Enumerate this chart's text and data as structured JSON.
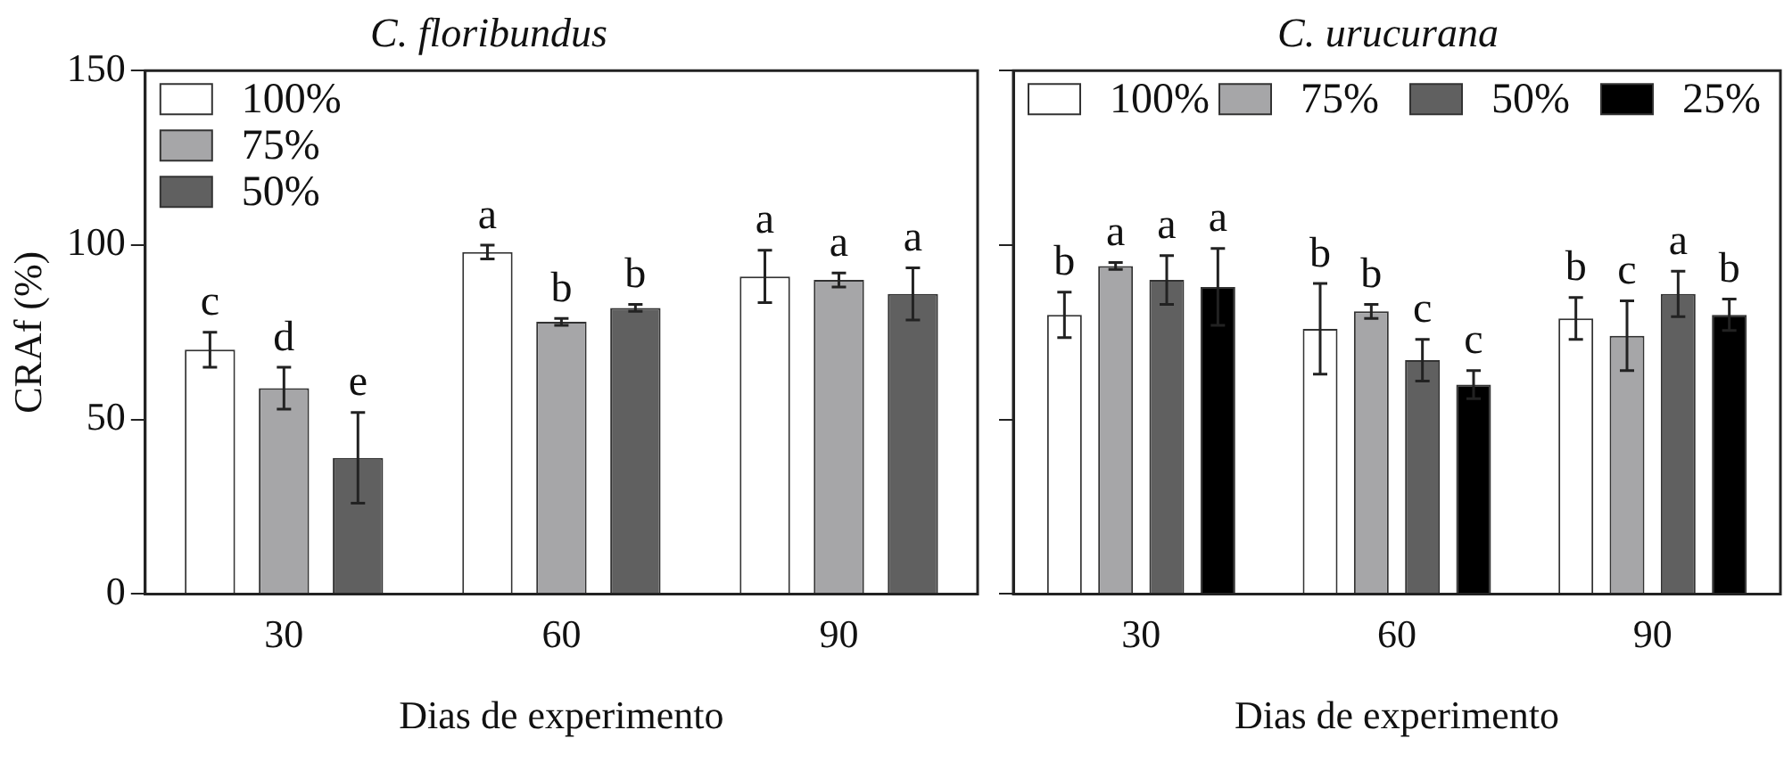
{
  "chart_data": [
    {
      "type": "bar",
      "title": "C. floribundus",
      "xlabel": "Dias de experimento",
      "ylabel": "CRAf (%)",
      "categories": [
        "30",
        "60",
        "90"
      ],
      "ylim": [
        0,
        150
      ],
      "yticks": [
        0,
        50,
        100,
        150
      ],
      "grid": false,
      "legend": "top left",
      "series": [
        {
          "name": "100%",
          "color": "#ffffff",
          "values": [
            70,
            98,
            91
          ],
          "errors": [
            5,
            2,
            7.5
          ],
          "value_labels": [
            "c",
            "a",
            "a"
          ]
        },
        {
          "name": "75%",
          "color": "#a6a6a8",
          "values": [
            59,
            78,
            90
          ],
          "errors": [
            6,
            1,
            2
          ],
          "value_labels": [
            "d",
            "b",
            "a"
          ]
        },
        {
          "name": "50%",
          "color": "#606060",
          "values": [
            39,
            82,
            86
          ],
          "errors": [
            13,
            1,
            7.5
          ],
          "value_labels": [
            "e",
            "b",
            "a"
          ]
        }
      ]
    },
    {
      "type": "bar",
      "title": "C. urucurana",
      "xlabel": "Dias de experimento",
      "categories": [
        "30",
        "60",
        "90"
      ],
      "ylim": [
        0,
        150
      ],
      "yticks": [
        0,
        50,
        100,
        150
      ],
      "grid": false,
      "legend": "top",
      "tick_labels": "x",
      "series": [
        {
          "name": "100%",
          "color": "#ffffff",
          "values": [
            80,
            76,
            79
          ],
          "errors": [
            6.5,
            13,
            6
          ],
          "value_labels": [
            "b",
            "b",
            "b"
          ]
        },
        {
          "name": "75%",
          "color": "#a6a6a8",
          "values": [
            94,
            81,
            74
          ],
          "errors": [
            1,
            2,
            10
          ],
          "value_labels": [
            "a",
            "b",
            "c"
          ]
        },
        {
          "name": "50%",
          "color": "#606060",
          "values": [
            90,
            67,
            86
          ],
          "errors": [
            7,
            6,
            6.5
          ],
          "value_labels": [
            "a",
            "c",
            "a"
          ]
        },
        {
          "name": "25%",
          "color": "#000000",
          "values": [
            88,
            60,
            80
          ],
          "errors": [
            11,
            4,
            4.5
          ],
          "value_labels": [
            "a",
            "c",
            "b"
          ]
        }
      ]
    }
  ]
}
